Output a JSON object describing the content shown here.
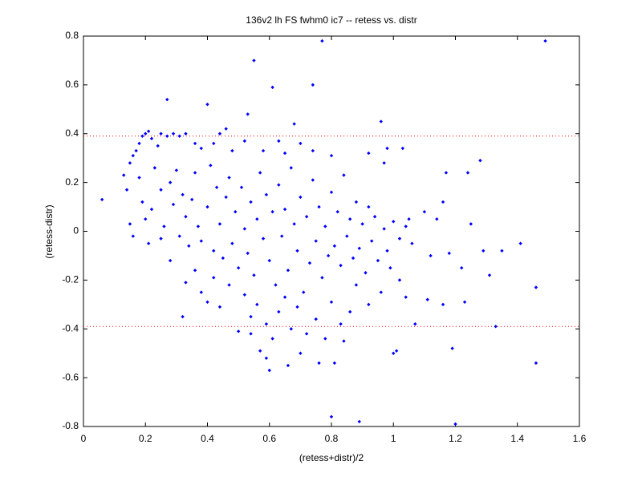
{
  "chart_data": {
    "type": "scatter",
    "title": "136v2 lh FS fwhm0 ic7 -- retess vs. distr",
    "x_label": "(retess+distr)/2",
    "y_label": "(retess-distr)",
    "color": "#0000ff",
    "reference_lines": [
      0.39,
      -0.39
    ],
    "reference_color": "#ff0000",
    "xlim": [
      0,
      1.6
    ],
    "ylim": [
      -0.8,
      0.8
    ],
    "xticks": [
      0,
      0.2,
      0.4,
      0.6,
      0.8,
      1,
      1.2,
      1.4,
      1.6
    ],
    "yticks": [
      -0.8,
      -0.6,
      -0.4,
      -0.2,
      0,
      0.2,
      0.4,
      0.6,
      0.8
    ],
    "x": [
      0.06,
      0.77,
      1.49,
      0.55,
      0.27,
      0.61,
      0.74,
      0.4,
      0.53,
      0.68,
      0.96,
      0.8,
      0.89,
      1.2,
      1.46,
      1.46,
      1.41,
      1.33,
      1.28,
      1.24,
      1.17,
      1.16,
      1.19,
      1.0,
      1.01,
      0.6,
      0.66,
      0.76,
      0.81,
      0.57,
      0.13,
      0.14,
      0.15,
      0.16,
      0.17,
      0.18,
      0.19,
      0.2,
      0.21,
      0.22,
      0.24,
      0.25,
      0.27,
      0.29,
      0.31,
      0.33,
      0.36,
      0.38,
      0.44,
      0.46,
      0.42,
      0.52,
      0.48,
      0.58,
      0.63,
      0.65,
      0.7,
      0.74,
      0.8,
      0.92,
      0.98,
      1.03,
      0.97,
      0.15,
      0.16,
      0.18,
      0.19,
      0.2,
      0.22,
      0.23,
      0.25,
      0.26,
      0.28,
      0.29,
      0.3,
      0.31,
      0.32,
      0.33,
      0.34,
      0.35,
      0.36,
      0.37,
      0.38,
      0.4,
      0.41,
      0.42,
      0.43,
      0.44,
      0.45,
      0.46,
      0.47,
      0.48,
      0.49,
      0.5,
      0.51,
      0.52,
      0.53,
      0.54,
      0.55,
      0.56,
      0.57,
      0.58,
      0.59,
      0.6,
      0.61,
      0.62,
      0.63,
      0.64,
      0.65,
      0.66,
      0.67,
      0.68,
      0.69,
      0.7,
      0.71,
      0.72,
      0.73,
      0.74,
      0.75,
      0.76,
      0.77,
      0.78,
      0.79,
      0.8,
      0.81,
      0.82,
      0.83,
      0.84,
      0.85,
      0.86,
      0.87,
      0.88,
      0.89,
      0.9,
      0.91,
      0.92,
      0.93,
      0.94,
      0.95,
      0.97,
      0.98,
      1.0,
      1.02,
      1.04,
      1.06,
      1.05,
      1.1,
      1.12,
      1.14,
      1.18,
      1.22,
      1.25,
      1.29,
      1.31,
      1.35,
      1.23,
      1.16,
      1.11,
      0.21,
      0.25,
      0.28,
      0.32,
      0.33,
      0.36,
      0.38,
      0.4,
      0.42,
      0.44,
      0.47,
      0.5,
      0.52,
      0.54,
      0.56,
      0.59,
      0.61,
      0.63,
      0.65,
      0.67,
      0.69,
      0.72,
      0.75,
      0.78,
      0.8,
      0.83,
      0.86,
      0.88,
      0.92,
      0.96,
      0.99,
      1.02,
      1.07,
      1.04,
      0.59,
      0.7,
      0.84,
      0.54
    ],
    "values": [
      0.13,
      0.78,
      0.78,
      0.7,
      0.54,
      0.59,
      0.6,
      0.52,
      0.48,
      0.44,
      0.45,
      -0.76,
      -0.78,
      -0.79,
      -0.54,
      -0.23,
      -0.05,
      -0.39,
      0.29,
      0.24,
      0.24,
      0.12,
      -0.48,
      -0.5,
      -0.49,
      -0.57,
      -0.55,
      -0.54,
      -0.54,
      -0.49,
      0.23,
      0.17,
      0.28,
      0.31,
      0.33,
      0.36,
      0.39,
      0.4,
      0.41,
      0.38,
      0.35,
      0.4,
      0.39,
      0.4,
      0.39,
      0.4,
      0.36,
      0.34,
      0.4,
      0.42,
      0.36,
      0.37,
      0.33,
      0.33,
      0.37,
      0.32,
      0.36,
      0.33,
      0.31,
      0.32,
      0.34,
      0.34,
      0.28,
      0.03,
      -0.02,
      0.22,
      0.12,
      0.05,
      0.09,
      0.26,
      0.17,
      0.02,
      0.2,
      0.11,
      0.25,
      -0.02,
      0.15,
      0.06,
      -0.06,
      0.13,
      0.24,
      0.02,
      -0.04,
      0.1,
      0.27,
      -0.08,
      0.18,
      0.03,
      -0.11,
      0.14,
      0.22,
      -0.05,
      0.08,
      -0.15,
      0.18,
      0.01,
      -0.09,
      0.12,
      -0.18,
      0.05,
      0.24,
      -0.03,
      0.15,
      -0.12,
      0.08,
      -0.22,
      0.19,
      -0.02,
      0.09,
      -0.16,
      0.26,
      0.03,
      -0.08,
      0.14,
      -0.25,
      0.06,
      -0.13,
      0.21,
      -0.04,
      0.1,
      -0.19,
      0.02,
      -0.1,
      0.16,
      -0.06,
      0.08,
      -0.14,
      0.23,
      -0.02,
      0.05,
      -0.11,
      0.12,
      -0.07,
      0.03,
      -0.17,
      0.1,
      -0.04,
      0.06,
      -0.12,
      0.01,
      -0.08,
      0.04,
      -0.03,
      0.02,
      -0.05,
      0.05,
      0.08,
      -0.1,
      0.05,
      -0.09,
      -0.15,
      0.03,
      -0.08,
      -0.18,
      -0.08,
      -0.29,
      -0.3,
      -0.28,
      -0.05,
      -0.03,
      -0.12,
      -0.35,
      -0.21,
      -0.16,
      -0.25,
      -0.29,
      -0.19,
      -0.31,
      -0.22,
      -0.41,
      -0.26,
      -0.35,
      -0.3,
      -0.38,
      -0.44,
      -0.33,
      -0.27,
      -0.4,
      -0.31,
      -0.42,
      -0.36,
      -0.44,
      -0.29,
      -0.38,
      -0.33,
      -0.22,
      -0.3,
      -0.25,
      -0.15,
      -0.2,
      -0.38,
      -0.27,
      -0.52,
      -0.5,
      -0.45,
      -0.42
    ]
  }
}
